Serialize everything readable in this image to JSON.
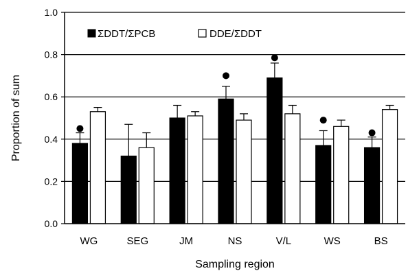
{
  "chart_data": {
    "type": "bar",
    "title": "",
    "xlabel": "Sampling region",
    "ylabel": "Proportion of sum",
    "ylim": [
      0,
      1.0
    ],
    "yticks": [
      "0.0",
      "0.2",
      "0.4",
      "0.6",
      "0.8",
      "1.0"
    ],
    "grid": true,
    "legend_position": "top-left",
    "categories": [
      "WG",
      "SEG",
      "JM",
      "NS",
      "V/L",
      "WS",
      "BS"
    ],
    "series": [
      {
        "name": "ΣDDT/ΣPCB",
        "color": "#000000",
        "values": [
          0.38,
          0.32,
          0.5,
          0.59,
          0.69,
          0.37,
          0.36
        ],
        "errors": [
          0.05,
          0.15,
          0.06,
          0.06,
          0.07,
          0.07,
          0.05
        ]
      },
      {
        "name": "DDE/ΣDDT",
        "color": "#ffffff",
        "values": [
          0.53,
          0.36,
          0.51,
          0.49,
          0.52,
          0.46,
          0.54
        ],
        "errors": [
          0.02,
          0.07,
          0.02,
          0.03,
          0.04,
          0.03,
          0.02
        ]
      }
    ],
    "markers": [
      {
        "category": "WG",
        "y": 0.45
      },
      {
        "category": "NS",
        "y": 0.7
      },
      {
        "category": "V/L",
        "y": 0.785
      },
      {
        "category": "WS",
        "y": 0.49
      },
      {
        "category": "BS",
        "y": 0.43
      }
    ]
  }
}
